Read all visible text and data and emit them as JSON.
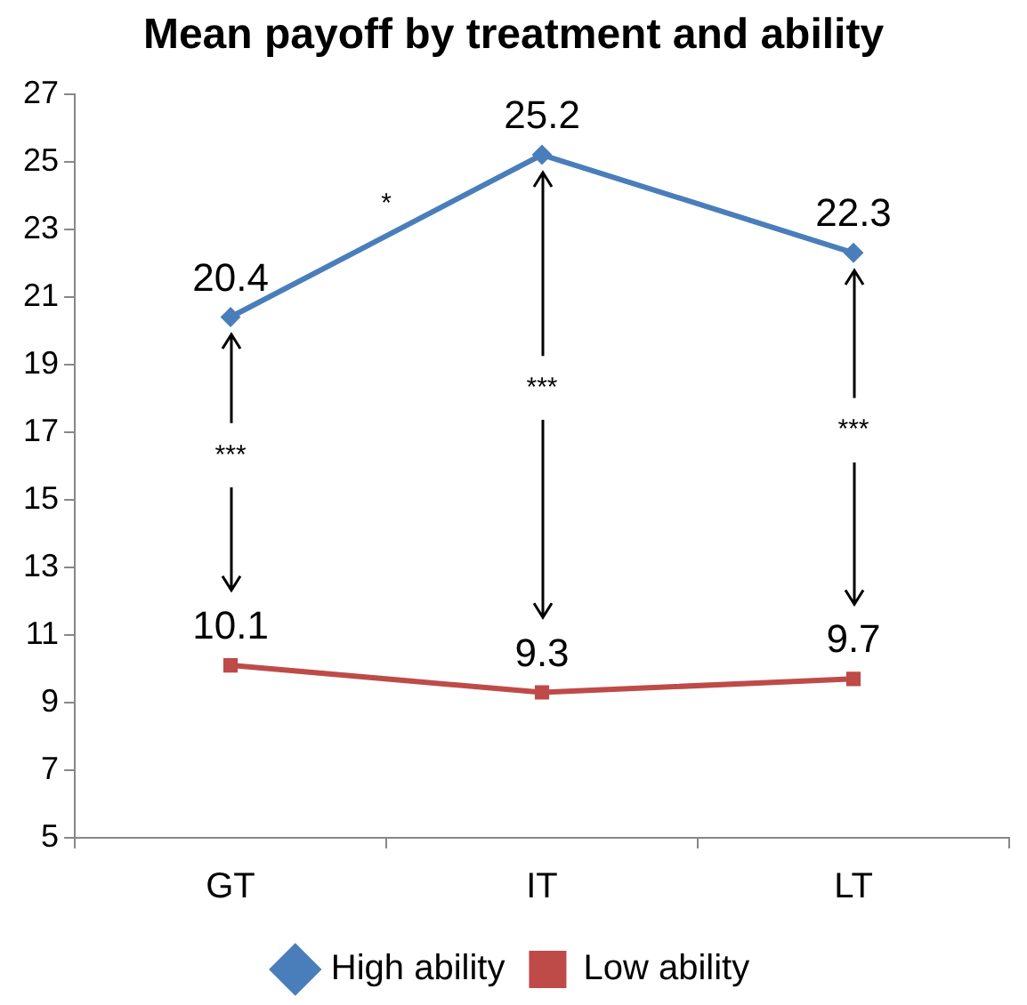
{
  "chart_data": {
    "type": "line",
    "title": "Mean payoff by treatment and ability",
    "categories": [
      "GT",
      "IT",
      "LT"
    ],
    "series": [
      {
        "name": "High ability",
        "color": "#4a7ebb",
        "marker": "diamond",
        "values": [
          20.4,
          25.2,
          22.3
        ]
      },
      {
        "name": "Low ability",
        "color": "#be4b48",
        "marker": "square",
        "values": [
          10.1,
          9.3,
          9.7
        ]
      }
    ],
    "ylim": [
      5,
      27
    ],
    "yticks": [
      5,
      7,
      9,
      11,
      13,
      15,
      17,
      19,
      21,
      23,
      25,
      27
    ],
    "grid": false,
    "legend": "bottom",
    "data_labels": true,
    "line_style": "solid",
    "annotations": [
      "*",
      "***",
      "***",
      "***"
    ]
  }
}
